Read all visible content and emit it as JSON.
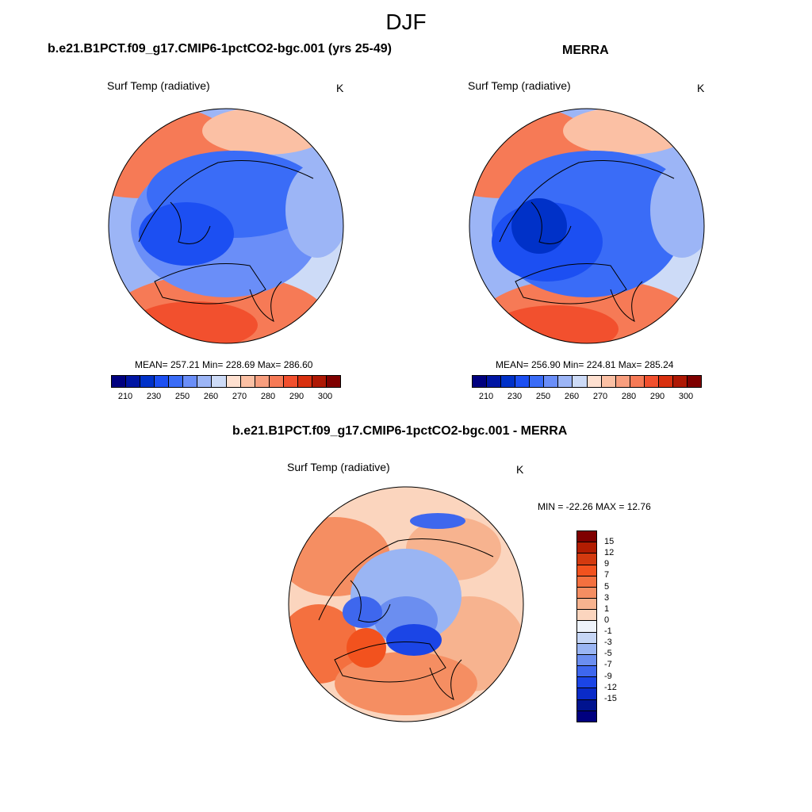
{
  "main_title": "DJF",
  "unit": "K",
  "var_label": "Surf Temp (radiative)",
  "panels": {
    "model": {
      "title": "b.e21.B1PCT.f09_g17.CMIP6-1pctCO2-bgc.001 (yrs 25-49)",
      "stats": "MEAN= 257.21  Min= 228.69  Max= 286.60"
    },
    "obs": {
      "title": "MERRA",
      "stats": "MEAN= 256.90  Min= 224.81  Max= 285.24"
    },
    "diff": {
      "title": "b.e21.B1PCT.f09_g17.CMIP6-1pctCO2-bgc.001 - MERRA",
      "stats": "MIN = -22.26 MAX =  12.76"
    }
  },
  "colorbar_abs": {
    "colors": [
      "#00007f",
      "#0015a3",
      "#0031c8",
      "#1c4ff2",
      "#3a6cf7",
      "#6a8ef8",
      "#9cb5f6",
      "#cddbf7",
      "#fee0d0",
      "#fbc0a4",
      "#f89e7e",
      "#f67a56",
      "#f2502e",
      "#d8300f",
      "#ae1804",
      "#7f0000"
    ],
    "tick_labels": [
      "210",
      "230",
      "250",
      "260",
      "270",
      "280",
      "290",
      "300"
    ]
  },
  "colorbar_diff": {
    "colors": [
      "#7f0000",
      "#b21d02",
      "#d33a0f",
      "#f2521e",
      "#f4703f",
      "#f58e62",
      "#f7b38f",
      "#fbd5be",
      "#eef3fb",
      "#c6d6f6",
      "#9ab5f3",
      "#6b8ef0",
      "#3e67ee",
      "#1b45e6",
      "#0a2bc8",
      "#00138f",
      "#00007f"
    ],
    "tick_labels": [
      "15",
      "12",
      "9",
      "7",
      "5",
      "3",
      "1",
      "0",
      "-1",
      "-3",
      "-5",
      "-7",
      "-9",
      "-12",
      "-15"
    ]
  },
  "map_legend": {
    "land_outline_color": "#000000"
  }
}
